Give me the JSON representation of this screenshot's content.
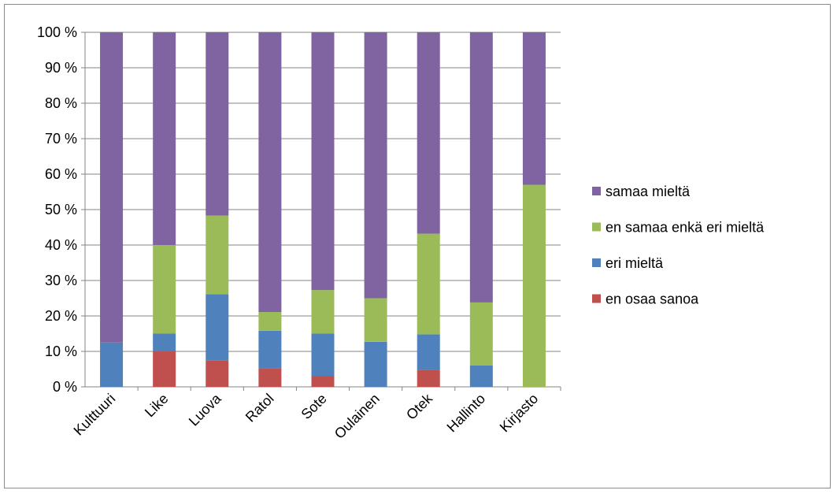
{
  "chart_data": {
    "type": "bar",
    "stacked": true,
    "normalized": true,
    "categories": [
      "Kulttuuri",
      "Like",
      "Luova",
      "Ratol",
      "Sote",
      "Oulainen",
      "Otek",
      "Hallinto",
      "Kirjasto"
    ],
    "series": [
      {
        "name": "en osaa sanoa",
        "color": "#c0504d",
        "values": [
          0,
          10,
          7.5,
          5.3,
          3,
          0,
          4.8,
          0,
          0
        ]
      },
      {
        "name": "eri mieltä",
        "color": "#4f81bd",
        "values": [
          12.5,
          5,
          18.6,
          10.5,
          12,
          12.7,
          10,
          6,
          0
        ]
      },
      {
        "name": "en samaa enkä eri mieltä",
        "color": "#9bbb59",
        "values": [
          0,
          25,
          22.2,
          5.3,
          12.3,
          12.3,
          28.4,
          17.8,
          57
        ]
      },
      {
        "name": "samaa mieltä",
        "color": "#8064a2",
        "values": [
          87.5,
          60,
          51.7,
          78.9,
          72.7,
          75,
          56.8,
          76.2,
          43
        ]
      }
    ],
    "y_ticks": [
      "0 %",
      "10 %",
      "20 %",
      "30 %",
      "40 %",
      "50 %",
      "60 %",
      "70 %",
      "80 %",
      "90 %",
      "100 %"
    ],
    "ylim": [
      0,
      100
    ],
    "grid": true,
    "legend_position": "right",
    "legend_order": [
      "samaa mieltä",
      "en samaa enkä eri mieltä",
      "eri mieltä",
      "en osaa sanoa"
    ],
    "title": "",
    "xlabel": "",
    "ylabel": ""
  }
}
